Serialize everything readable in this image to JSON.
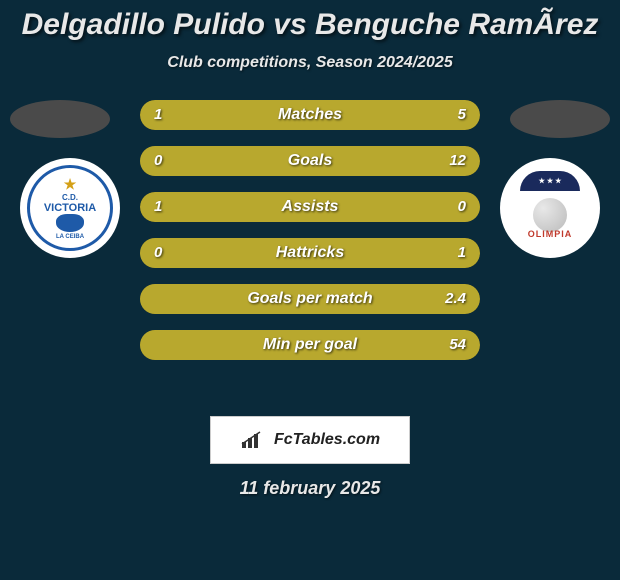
{
  "header": {
    "title": "Delgadillo Pulido vs Benguche RamÃ­rez",
    "title_color": "#e8e8e8",
    "title_fontsize": 30,
    "subtitle": "Club competitions, Season 2024/2025",
    "subtitle_color": "#e8e8e8",
    "subtitle_fontsize": 16
  },
  "background_color": "#0a2a3a",
  "side_oval_color": "#4a4a4a",
  "teams": {
    "left": {
      "name": "CD Victoria",
      "badge_text_top": "C.D.",
      "badge_text_main": "VICTORIA",
      "badge_text_bottom": "LA CEIBA"
    },
    "right": {
      "name": "Olimpia",
      "badge_text": "OLIMPIA"
    }
  },
  "stats": {
    "bar_track_color": "#3a3a1a",
    "bar_fill_color": "#b8a82e",
    "label_color": "#ffffff",
    "label_fontsize": 16,
    "value_color": "#ffffff",
    "value_fontsize": 15,
    "rows": [
      {
        "label": "Matches",
        "left_val": "1",
        "right_val": "5",
        "left_pct": 17,
        "right_pct": 83
      },
      {
        "label": "Goals",
        "left_val": "0",
        "right_val": "12",
        "left_pct": 0,
        "right_pct": 100
      },
      {
        "label": "Assists",
        "left_val": "1",
        "right_val": "0",
        "left_pct": 100,
        "right_pct": 0
      },
      {
        "label": "Hattricks",
        "left_val": "0",
        "right_val": "1",
        "left_pct": 0,
        "right_pct": 100
      },
      {
        "label": "Goals per match",
        "left_val": "",
        "right_val": "2.4",
        "left_pct": 0,
        "right_pct": 100
      },
      {
        "label": "Min per goal",
        "left_val": "",
        "right_val": "54",
        "left_pct": 0,
        "right_pct": 100
      }
    ]
  },
  "footer": {
    "brand_text": "FcTables.com",
    "date_text": "11 february 2025",
    "date_color": "#e8e8e8",
    "date_fontsize": 18
  }
}
